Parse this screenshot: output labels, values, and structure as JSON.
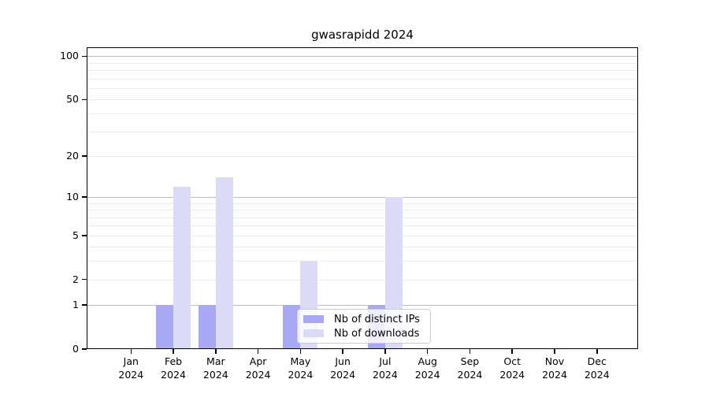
{
  "chart_data": {
    "type": "bar",
    "title": "gwasrapidd 2024",
    "categories": [
      "Jan",
      "Feb",
      "Mar",
      "Apr",
      "May",
      "Jun",
      "Jul",
      "Aug",
      "Sep",
      "Oct",
      "Nov",
      "Dec"
    ],
    "category_year": "2024",
    "series": [
      {
        "name": "Nb of distinct IPs",
        "color": "#a9a9f3",
        "values": [
          0,
          1,
          1,
          0,
          1,
          0,
          1,
          0,
          0,
          0,
          0,
          0
        ]
      },
      {
        "name": "Nb of downloads",
        "color": "#dbdbf8",
        "values": [
          0,
          12,
          14,
          0,
          3,
          0,
          10,
          0,
          0,
          0,
          0,
          0
        ]
      }
    ],
    "xlabel": "",
    "ylabel": "",
    "yscale": "log1p",
    "ylim": [
      0,
      116
    ],
    "yticks": [
      0,
      1,
      2,
      5,
      10,
      20,
      50,
      100
    ],
    "gridlines_major": [
      1,
      10,
      100
    ],
    "gridlines_minor": [
      2,
      3,
      4,
      5,
      6,
      7,
      8,
      9,
      20,
      30,
      40,
      50,
      60,
      70,
      80,
      90
    ],
    "grid": true,
    "legend_position": "lower center inside"
  }
}
